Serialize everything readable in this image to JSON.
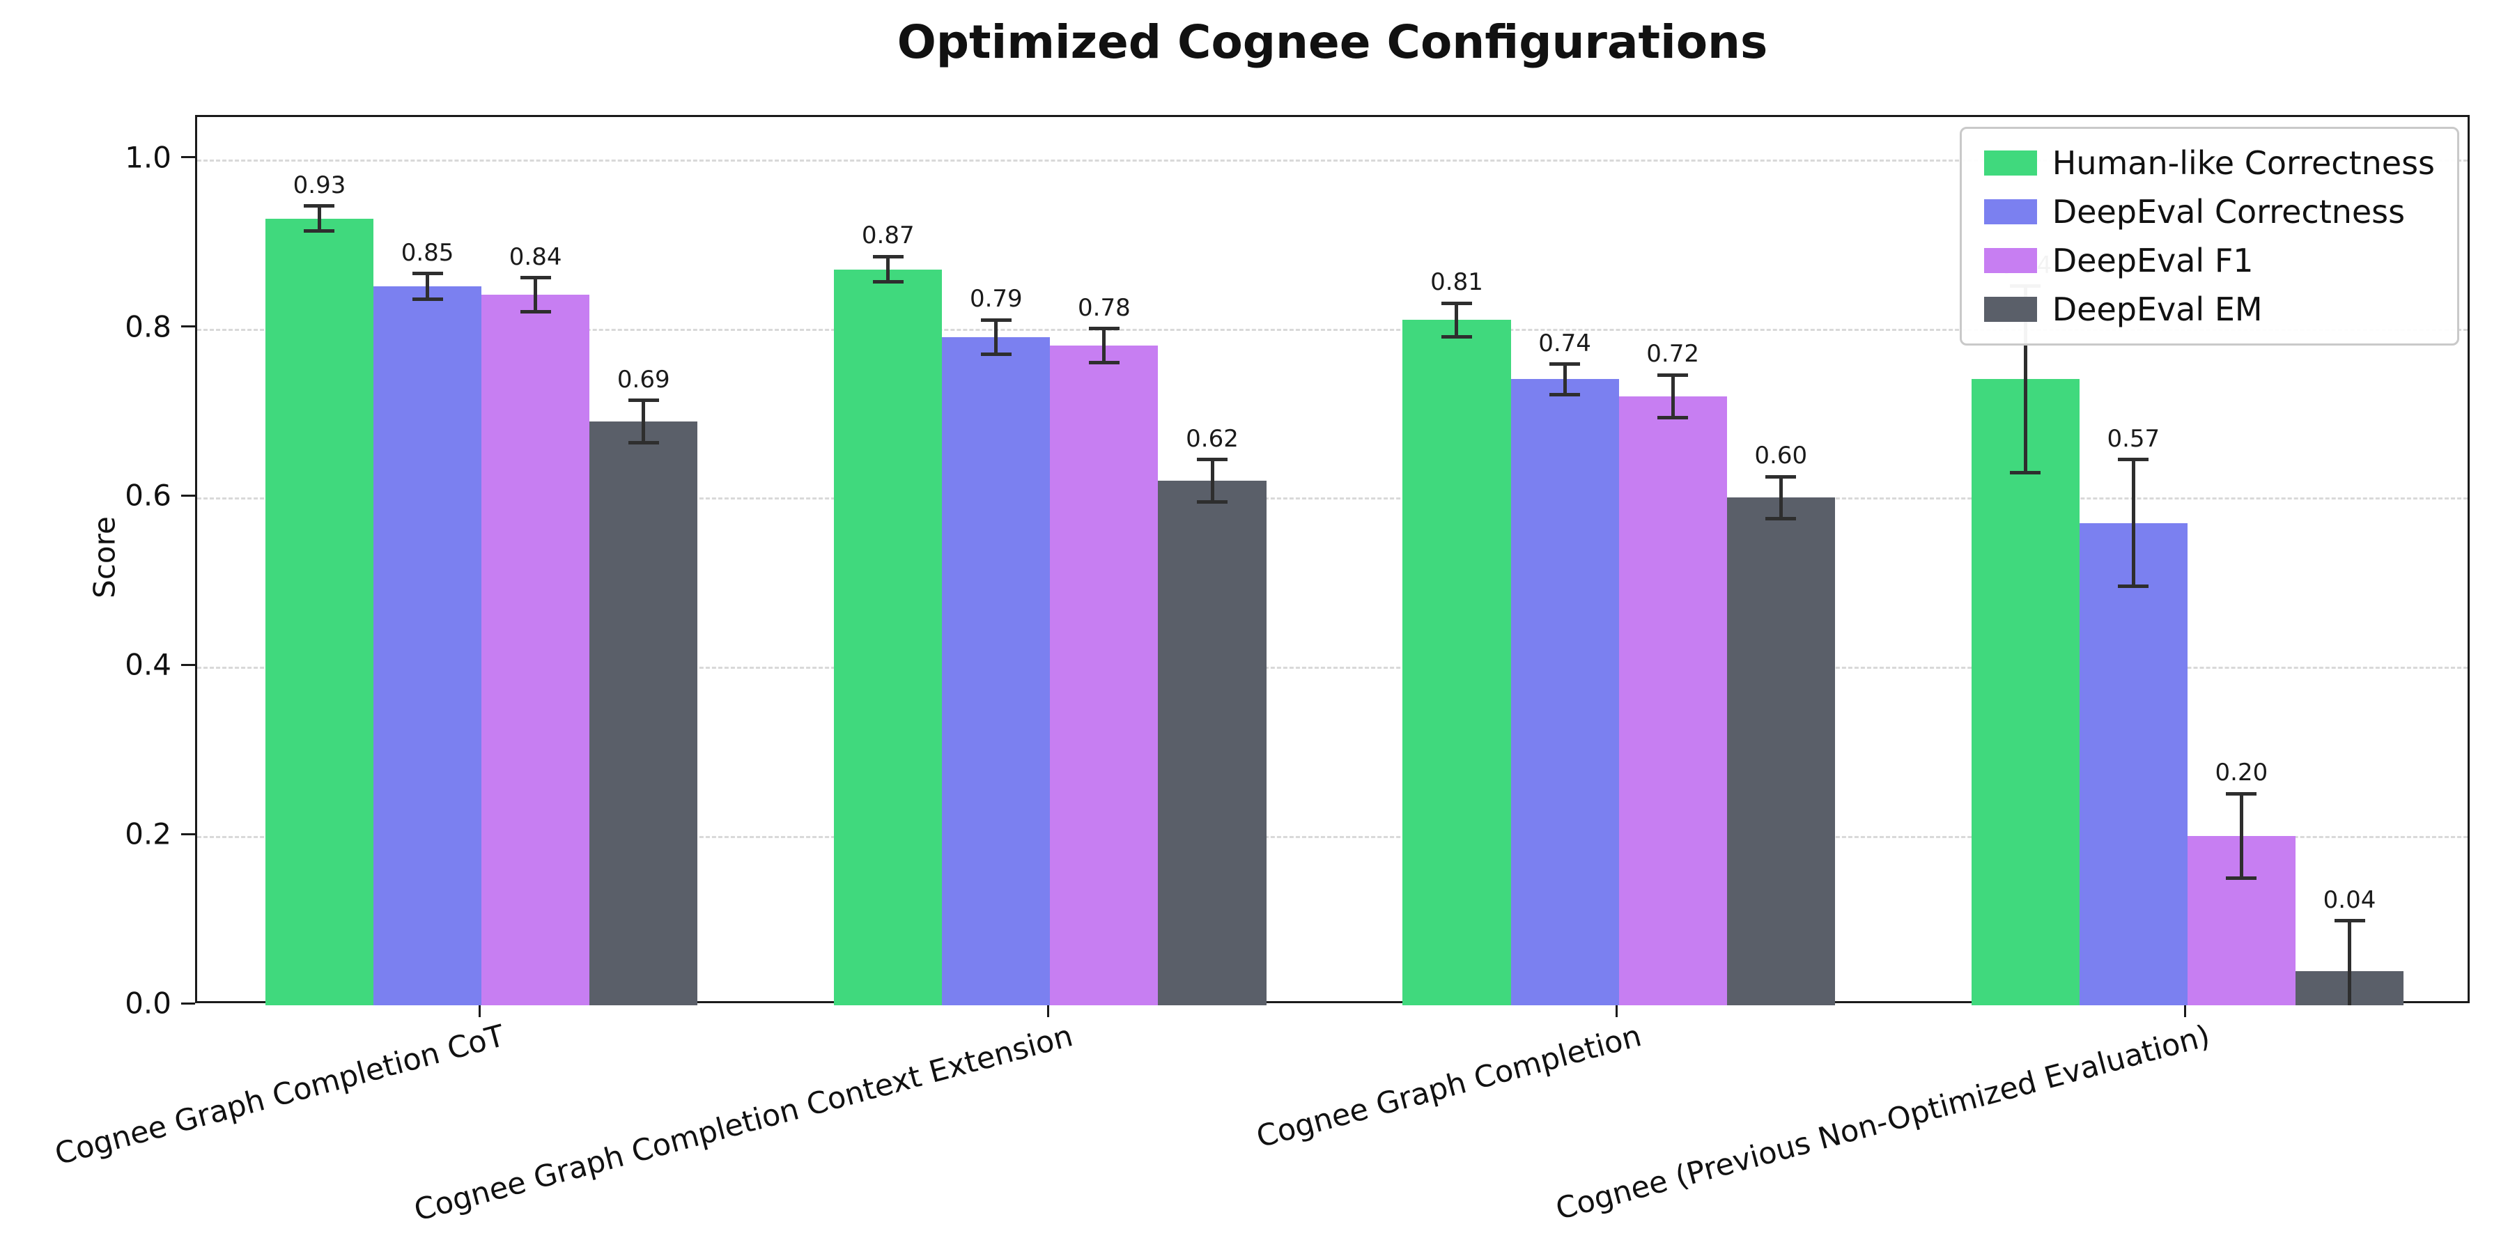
{
  "title": "Optimized Cognee Configurations",
  "ylabel": "Score",
  "chart_data": {
    "type": "bar",
    "title": "Optimized Cognee Configurations",
    "xlabel": "",
    "ylabel": "Score",
    "ylim": [
      0,
      1.05
    ],
    "yticks": [
      0.0,
      0.2,
      0.4,
      0.6,
      0.8,
      1.0
    ],
    "grid": "horizontal-dashed",
    "legend_position": "upper-right",
    "error_bars": true,
    "colors": {
      "human_like": "#40d97d",
      "deepeval_correctness": "#7b80f0",
      "deepeval_f1": "#c77ef2",
      "deepeval_em": "#5a5f69",
      "error_bar": "#2e2e2e",
      "gridline": "#d9d9d9"
    },
    "categories": [
      "Cognee Graph Completion CoT",
      "Cognee Graph Completion Context Extension",
      "Cognee Graph Completion",
      "Cognee (Previous Non-Optimized Evaluation)"
    ],
    "series": [
      {
        "name": "Human-like Correctness",
        "color": "#40d97d",
        "values": [
          0.93,
          0.87,
          0.81,
          0.74
        ],
        "errors": [
          0.015,
          0.015,
          0.02,
          0.11
        ]
      },
      {
        "name": "DeepEval Correctness",
        "color": "#7b80f0",
        "values": [
          0.85,
          0.79,
          0.74,
          0.57
        ],
        "errors": [
          0.015,
          0.02,
          0.018,
          0.075
        ]
      },
      {
        "name": "DeepEval F1",
        "color": "#c77ef2",
        "values": [
          0.84,
          0.78,
          0.72,
          0.2
        ],
        "errors": [
          0.02,
          0.02,
          0.025,
          0.05
        ]
      },
      {
        "name": "DeepEval EM",
        "color": "#5a5f69",
        "values": [
          0.69,
          0.62,
          0.6,
          0.04
        ],
        "errors": [
          0.025,
          0.025,
          0.025,
          0.06
        ]
      }
    ]
  }
}
